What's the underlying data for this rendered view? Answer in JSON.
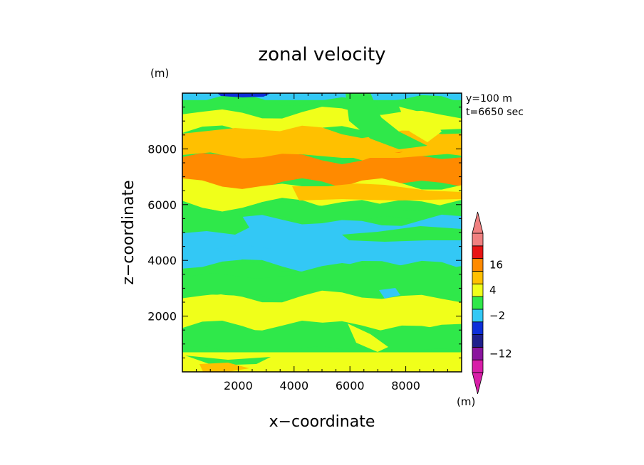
{
  "chart_data": {
    "type": "heatmap",
    "title": "zonal velocity",
    "xlabel": "x−coordinate",
    "ylabel": "z−coordinate",
    "y_unit": "(m)",
    "colorbar_unit": "(m)",
    "annotations": [
      "y=100 m",
      "t=6650 sec"
    ],
    "xlim": [
      0,
      10000
    ],
    "ylim": [
      0,
      10000
    ],
    "x_ticks": [
      {
        "value": 2000,
        "label": "2000"
      },
      {
        "value": 4000,
        "label": "4000"
      },
      {
        "value": 6000,
        "label": "6000"
      },
      {
        "value": 8000,
        "label": "8000"
      }
    ],
    "y_ticks": [
      {
        "value": 2000,
        "label": "2000"
      },
      {
        "value": 4000,
        "label": "4000"
      },
      {
        "value": 6000,
        "label": "6000"
      },
      {
        "value": 8000,
        "label": "8000"
      }
    ],
    "colorbar": {
      "colors": [
        "#d81ea8",
        "#8a169e",
        "#1f1f8c",
        "#0d2fd9",
        "#33c8f5",
        "#2fe84a",
        "#f0ff1a",
        "#ffc000",
        "#ff8a00",
        "#e81414",
        "#f08080"
      ],
      "tick_labels": [
        {
          "after_index": 8.5,
          "label": "16"
        },
        {
          "after_index": 6.5,
          "label": "4"
        },
        {
          "after_index": 4.5,
          "label": "−2"
        },
        {
          "after_index": 1.5,
          "label": "−12"
        }
      ],
      "extend": "both"
    },
    "bands": [
      {
        "z_top": 10000,
        "z_bottom": 9750,
        "color": "#33c8f5",
        "note": "top band with deep-blue patch near x=2000"
      },
      {
        "z_top": 9750,
        "z_bottom": 9300,
        "color": "#2fe84a"
      },
      {
        "z_top": 9300,
        "z_bottom": 8600,
        "color": "#f0ff1a"
      },
      {
        "z_top": 8600,
        "z_bottom": 7700,
        "color": "#ffc000"
      },
      {
        "z_top": 7700,
        "z_bottom": 6700,
        "color": "#ff8a00"
      },
      {
        "z_top": 6700,
        "z_bottom": 6000,
        "color": "#f0ff1a"
      },
      {
        "z_top": 6000,
        "z_bottom": 5400,
        "color": "#2fe84a"
      },
      {
        "z_top": 5400,
        "z_bottom": 3800,
        "color": "#33c8f5"
      },
      {
        "z_top": 3800,
        "z_bottom": 2700,
        "color": "#2fe84a"
      },
      {
        "z_top": 2700,
        "z_bottom": 1600,
        "color": "#f0ff1a"
      },
      {
        "z_top": 1600,
        "z_bottom": 700,
        "color": "#2fe84a"
      },
      {
        "z_top": 700,
        "z_bottom": 0,
        "color": "#f0ff1a"
      }
    ]
  }
}
